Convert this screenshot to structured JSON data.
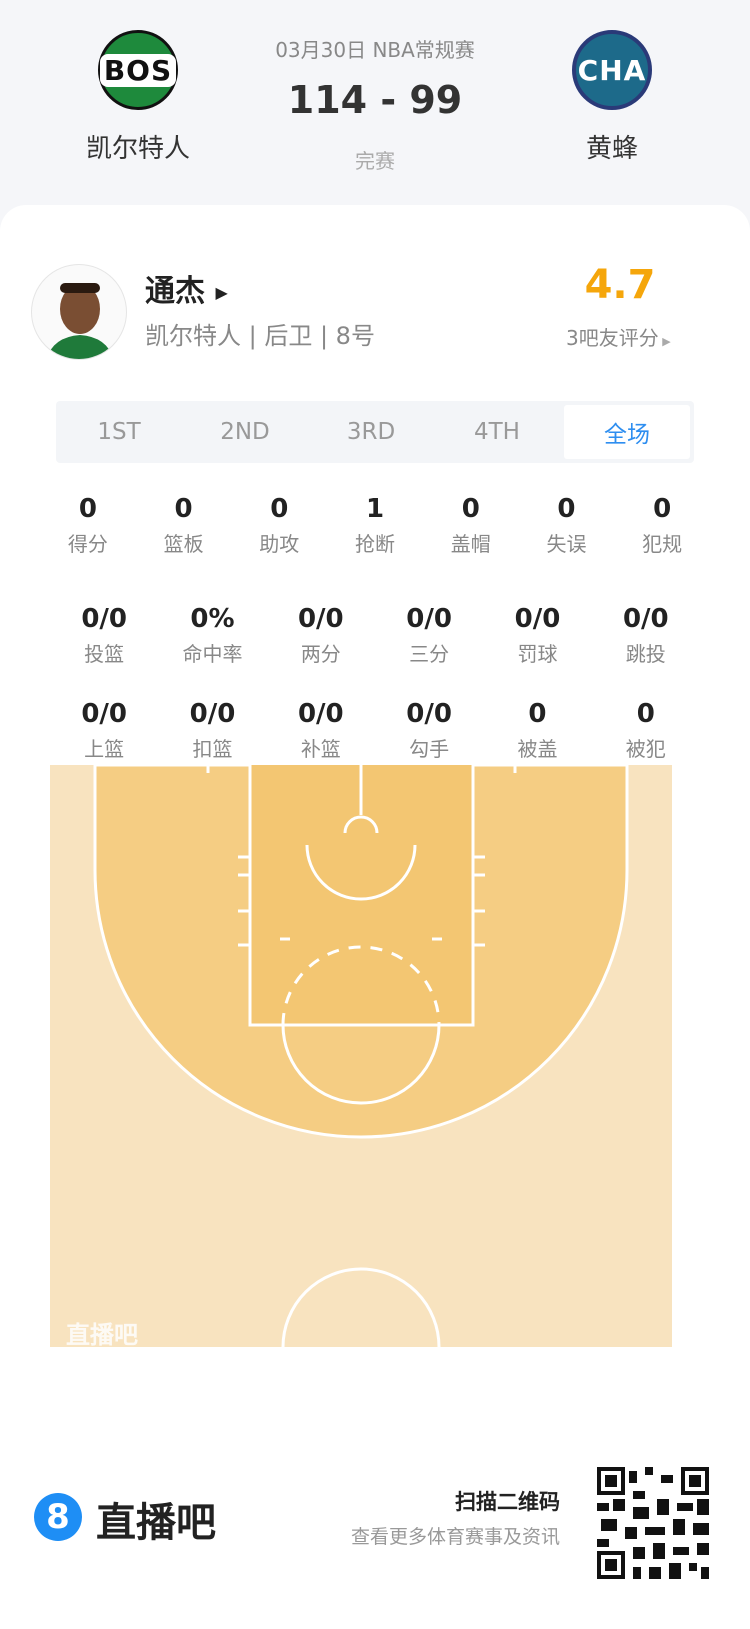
{
  "match": {
    "date_league": "03月30日 NBA常规赛",
    "score": "114 - 99",
    "status": "完赛",
    "home": {
      "abbr": "BOS",
      "name": "凯尔特人",
      "color": "#1e8a3c"
    },
    "away": {
      "abbr": "CHA",
      "name": "黄蜂",
      "color": "#1d4f80"
    }
  },
  "player": {
    "name": "通杰",
    "info": "凯尔特人 | 后卫 | 8号",
    "rating": "4.7",
    "rating_label": "3吧友评分",
    "rating_color": "#f5a60b"
  },
  "tabs": [
    {
      "label": "1ST"
    },
    {
      "label": "2ND"
    },
    {
      "label": "3RD"
    },
    {
      "label": "4TH"
    },
    {
      "label": "全场",
      "active": true
    }
  ],
  "stats_row1": [
    {
      "v": "0",
      "l": "得分"
    },
    {
      "v": "0",
      "l": "篮板"
    },
    {
      "v": "0",
      "l": "助攻"
    },
    {
      "v": "1",
      "l": "抢断"
    },
    {
      "v": "0",
      "l": "盖帽"
    },
    {
      "v": "0",
      "l": "失误"
    },
    {
      "v": "0",
      "l": "犯规"
    }
  ],
  "stats_row2": [
    {
      "v": "0/0",
      "l": "投篮"
    },
    {
      "v": "0%",
      "l": "命中率"
    },
    {
      "v": "0/0",
      "l": "两分"
    },
    {
      "v": "0/0",
      "l": "三分"
    },
    {
      "v": "0/0",
      "l": "罚球"
    },
    {
      "v": "0/0",
      "l": "跳投"
    }
  ],
  "stats_row3": [
    {
      "v": "0/0",
      "l": "上篮"
    },
    {
      "v": "0/0",
      "l": "扣篮"
    },
    {
      "v": "0/0",
      "l": "补篮"
    },
    {
      "v": "0/0",
      "l": "勾手"
    },
    {
      "v": "0",
      "l": "被盖"
    },
    {
      "v": "0",
      "l": "被犯"
    }
  ],
  "court": {
    "watermark": "直播吧"
  },
  "footer": {
    "brand": "直播吧",
    "brand_icon": "8",
    "scan": "扫描二维码",
    "sub": "查看更多体育赛事及资讯",
    "accent": "#1e8ef5"
  }
}
